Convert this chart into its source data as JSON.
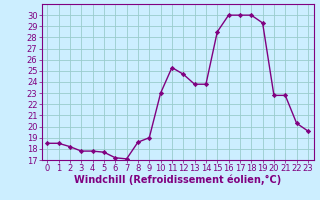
{
  "x": [
    0,
    1,
    2,
    3,
    4,
    5,
    6,
    7,
    8,
    9,
    10,
    11,
    12,
    13,
    14,
    15,
    16,
    17,
    18,
    19,
    20,
    21,
    22,
    23
  ],
  "y": [
    18.5,
    18.5,
    18.2,
    17.8,
    17.8,
    17.7,
    17.2,
    17.1,
    18.6,
    19.0,
    23.0,
    25.3,
    24.7,
    23.8,
    23.8,
    28.5,
    30.0,
    30.0,
    30.0,
    29.3,
    22.8,
    22.8,
    20.3,
    19.6
  ],
  "line_color": "#800080",
  "marker": "D",
  "marker_size": 2.2,
  "bg_color": "#cceeff",
  "grid_color": "#99cccc",
  "xlabel": "Windchill (Refroidissement éolien,°C)",
  "ylim": [
    17,
    31
  ],
  "xlim": [
    -0.5,
    23.5
  ],
  "yticks": [
    17,
    18,
    19,
    20,
    21,
    22,
    23,
    24,
    25,
    26,
    27,
    28,
    29,
    30
  ],
  "xticks": [
    0,
    1,
    2,
    3,
    4,
    5,
    6,
    7,
    8,
    9,
    10,
    11,
    12,
    13,
    14,
    15,
    16,
    17,
    18,
    19,
    20,
    21,
    22,
    23
  ],
  "xlabel_fontsize": 7.0,
  "tick_fontsize": 6.0,
  "axis_label_color": "#800080",
  "spine_color": "#800080",
  "linewidth": 1.0
}
